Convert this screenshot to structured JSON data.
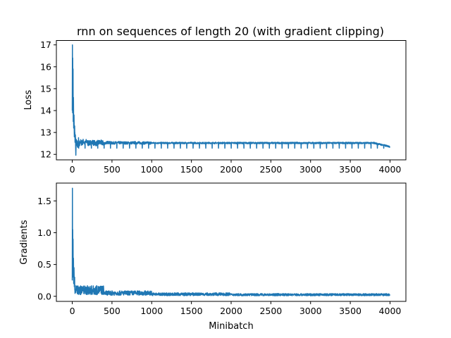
{
  "figure": {
    "title": "rnn on sequences of length 20 (with gradient clipping)"
  },
  "chart_data": [
    {
      "type": "line",
      "title": "rnn on sequences of length 20 (with gradient clipping)",
      "xlabel": "",
      "ylabel": "Loss",
      "xlim": [
        -200,
        4200
      ],
      "ylim": [
        11.75,
        17.2
      ],
      "xticks": [
        0,
        500,
        1000,
        1500,
        2000,
        2500,
        3000,
        3500,
        4000
      ],
      "yticks": [
        12,
        13,
        14,
        15,
        16,
        17
      ],
      "grid": false,
      "color": "#1f77b4",
      "series": [
        {
          "values_note_free": true,
          "x": [
            0,
            2,
            4,
            6,
            8,
            10,
            12,
            15,
            18,
            22,
            26,
            30,
            35,
            40,
            45,
            50,
            55,
            60,
            70,
            80,
            90,
            100,
            120,
            140,
            160,
            180,
            200,
            250,
            300,
            350,
            400,
            450,
            500,
            600,
            700,
            800,
            900,
            1000,
            1200,
            1400,
            1600,
            1800,
            2000,
            2200,
            2400,
            2600,
            2800,
            3000,
            3200,
            3400,
            3600,
            3800,
            4000
          ],
          "values": [
            14.0,
            17.0,
            13.9,
            16.4,
            14.2,
            15.9,
            13.5,
            14.6,
            13.2,
            13.8,
            12.8,
            13.3,
            12.6,
            12.9,
            11.9,
            12.7,
            12.4,
            12.6,
            12.3,
            12.7,
            12.4,
            12.6,
            12.5,
            12.6,
            12.5,
            12.6,
            12.5,
            12.55,
            12.5,
            12.55,
            12.5,
            12.55,
            12.52,
            12.53,
            12.52,
            12.53,
            12.52,
            12.52,
            12.52,
            12.52,
            12.52,
            12.52,
            12.52,
            12.52,
            12.52,
            12.52,
            12.52,
            12.52,
            12.52,
            12.52,
            12.52,
            12.52,
            12.35
          ]
        }
      ],
      "periodic_dips": {
        "start": 80,
        "end": 4000,
        "step": 80,
        "low": 12.28
      },
      "noise_band": {
        "segments": [
          {
            "x0": 30,
            "x1": 400,
            "amp": 0.12
          },
          {
            "x0": 400,
            "x1": 1000,
            "amp": 0.06
          },
          {
            "x0": 1000,
            "x1": 4000,
            "amp": 0.035
          }
        ],
        "base": 12.52
      }
    },
    {
      "type": "line",
      "title": "",
      "xlabel": "Minibatch",
      "ylabel": "Gradients",
      "xlim": [
        -200,
        4200
      ],
      "ylim": [
        -0.08,
        1.78
      ],
      "xticks": [
        0,
        500,
        1000,
        1500,
        2000,
        2500,
        3000,
        3500,
        4000
      ],
      "yticks": [
        0.0,
        0.5,
        1.0,
        1.5
      ],
      "grid": false,
      "color": "#1f77b4",
      "series": [
        {
          "x": [
            0,
            2,
            4,
            6,
            8,
            10,
            12,
            15,
            18,
            22,
            26,
            30,
            35,
            40,
            45,
            50,
            60,
            80,
            100,
            150,
            200,
            300,
            400,
            500,
            700,
            1000,
            1500,
            2000,
            2500,
            3000,
            3500,
            4000
          ],
          "values": [
            0.25,
            1.7,
            0.3,
            1.05,
            0.45,
            0.9,
            0.3,
            0.6,
            0.2,
            0.45,
            0.15,
            0.3,
            0.1,
            0.2,
            0.05,
            0.12,
            0.08,
            0.1,
            0.07,
            0.08,
            0.06,
            0.06,
            0.05,
            0.05,
            0.04,
            0.04,
            0.03,
            0.025,
            0.02,
            0.02,
            0.018,
            0.02
          ]
        }
      ],
      "noise_band": {
        "segments": [
          {
            "x0": 40,
            "x1": 400,
            "amp": 0.12,
            "base": 0.06
          },
          {
            "x0": 400,
            "x1": 1000,
            "amp": 0.07,
            "base": 0.04
          },
          {
            "x0": 1000,
            "x1": 2000,
            "amp": 0.045,
            "base": 0.025
          },
          {
            "x0": 2000,
            "x1": 4000,
            "amp": 0.035,
            "base": 0.02
          }
        ]
      }
    }
  ]
}
